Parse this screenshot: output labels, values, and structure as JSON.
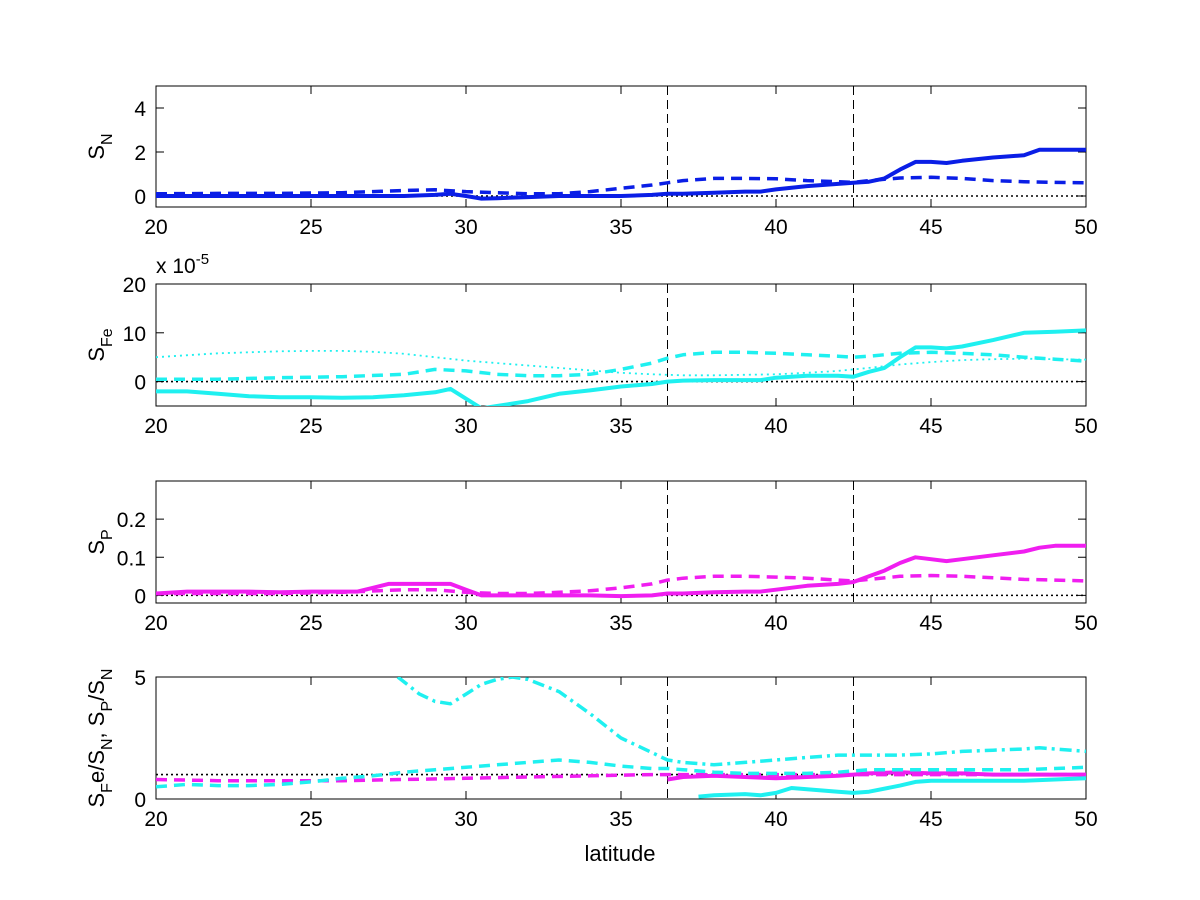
{
  "figure": {
    "xlabel": "latitude"
  },
  "chart_data": [
    {
      "type": "line",
      "ylabel": "S",
      "ylabel_sub": "N",
      "xlim": [
        20,
        50
      ],
      "ylim": [
        -0.5,
        5
      ],
      "xticks": [
        20,
        25,
        30,
        35,
        40,
        45,
        50
      ],
      "yticks": [
        0,
        2,
        4
      ],
      "vlines": [
        36.5,
        42.5
      ],
      "zero_line": 0,
      "series": [
        {
          "style": "solid",
          "color": "#0a1ee6",
          "x": [
            20,
            21,
            22,
            23,
            24,
            25,
            26,
            27,
            28,
            29,
            29.5,
            30,
            30.5,
            31,
            32,
            33,
            34,
            35,
            36,
            36.5,
            37,
            38,
            39,
            39.5,
            40,
            41,
            42,
            42.5,
            43,
            43.5,
            44,
            44.5,
            45,
            45.5,
            46,
            47,
            47.5,
            48,
            48.5,
            49,
            50
          ],
          "y": [
            0,
            0,
            0,
            0,
            0,
            0,
            0,
            0,
            0,
            0.05,
            0.1,
            0,
            -0.12,
            -0.1,
            -0.05,
            0,
            0,
            0,
            0.05,
            0.1,
            0.1,
            0.15,
            0.2,
            0.2,
            0.3,
            0.45,
            0.55,
            0.6,
            0.65,
            0.8,
            1.2,
            1.55,
            1.55,
            1.5,
            1.6,
            1.75,
            1.8,
            1.85,
            2.1,
            2.1,
            2.1
          ]
        },
        {
          "style": "dashed",
          "color": "#0a1ee6",
          "x": [
            20,
            22,
            24,
            26,
            27,
            28,
            29,
            30,
            31,
            32,
            33,
            34,
            35,
            36,
            36.5,
            37,
            38,
            39,
            40,
            41,
            42,
            42.5,
            43,
            44,
            45,
            46,
            47,
            48,
            49,
            50
          ],
          "y": [
            0.1,
            0.12,
            0.12,
            0.15,
            0.2,
            0.25,
            0.28,
            0.2,
            0.15,
            0.1,
            0.1,
            0.2,
            0.35,
            0.5,
            0.6,
            0.7,
            0.8,
            0.8,
            0.78,
            0.7,
            0.65,
            0.62,
            0.7,
            0.82,
            0.85,
            0.8,
            0.7,
            0.65,
            0.62,
            0.6
          ]
        }
      ]
    },
    {
      "type": "line",
      "ylabel": "S",
      "ylabel_sub": "Fe",
      "exponent_label": "x 10",
      "exponent_power": "-5",
      "xlim": [
        20,
        50
      ],
      "ylim": [
        -5,
        20
      ],
      "xticks": [
        20,
        25,
        30,
        35,
        40,
        45,
        50
      ],
      "yticks": [
        0,
        10,
        20
      ],
      "vlines": [
        36.5,
        42.5
      ],
      "zero_line": 0,
      "series": [
        {
          "style": "solid",
          "color": "#1ff0f0",
          "x": [
            20,
            21,
            22,
            23,
            24,
            25,
            26,
            27,
            28,
            29,
            29.5,
            30,
            30.5,
            31,
            32,
            33,
            34,
            35,
            36,
            36.5,
            37,
            38,
            39,
            39.5,
            40,
            41,
            42,
            42.5,
            43,
            43.5,
            44,
            44.5,
            45,
            45.5,
            46,
            47,
            48,
            49,
            50
          ],
          "y": [
            -2,
            -2,
            -2.5,
            -3,
            -3.2,
            -3.2,
            -3.3,
            -3.2,
            -2.8,
            -2.2,
            -1.5,
            -3.5,
            -5.5,
            -5,
            -4,
            -2.5,
            -1.8,
            -1,
            -0.5,
            0,
            0.2,
            0.3,
            0.3,
            0.3,
            0.8,
            1.2,
            1.2,
            1,
            2,
            2.8,
            5,
            7,
            7,
            6.8,
            7.2,
            8.5,
            10,
            10.2,
            10.5
          ]
        },
        {
          "style": "dashed",
          "color": "#1ff0f0",
          "x": [
            20,
            22,
            24,
            26,
            28,
            29,
            30,
            31,
            32,
            33,
            34,
            35,
            36,
            36.5,
            37,
            38,
            39,
            40,
            41,
            42,
            42.5,
            43,
            44,
            45,
            46,
            47,
            48,
            49,
            50
          ],
          "y": [
            0.5,
            0.5,
            0.8,
            1,
            1.5,
            2.5,
            2.2,
            1.5,
            1.2,
            1.2,
            1.5,
            2.5,
            3.8,
            4.8,
            5.5,
            6,
            6,
            5.8,
            5.5,
            5.2,
            5,
            5.2,
            5.8,
            6,
            5.8,
            5.5,
            5,
            4.6,
            4.2
          ]
        },
        {
          "style": "dotted",
          "color": "#1ff0f0",
          "x": [
            20,
            22,
            24,
            25,
            26,
            27,
            28,
            29,
            30,
            31,
            32,
            33,
            34,
            35,
            36,
            37,
            38,
            39,
            40,
            41,
            42,
            43,
            44,
            45,
            46,
            47,
            48,
            49,
            50
          ],
          "y": [
            5,
            5.8,
            6.2,
            6.3,
            6.3,
            6.1,
            5.7,
            5,
            4.3,
            3.8,
            3.3,
            2.8,
            2.3,
            1.8,
            1.5,
            1.3,
            1.3,
            1.4,
            1.5,
            1.8,
            2.2,
            2.8,
            3.5,
            4,
            4.4,
            4.6,
            4.7,
            4.6,
            4.5
          ]
        }
      ]
    },
    {
      "type": "line",
      "ylabel": "S",
      "ylabel_sub": "P",
      "xlim": [
        20,
        50
      ],
      "ylim": [
        -0.02,
        0.3
      ],
      "xticks": [
        20,
        25,
        30,
        35,
        40,
        45,
        50
      ],
      "yticks": [
        0,
        0.1,
        0.2
      ],
      "vlines": [
        36.5,
        42.5
      ],
      "zero_line": 0,
      "series": [
        {
          "style": "solid",
          "color": "#f01ef0",
          "x": [
            20,
            21,
            22,
            23,
            24,
            25,
            26,
            26.5,
            27,
            27.5,
            28,
            29,
            29.5,
            30,
            30.5,
            31,
            32,
            33,
            34,
            35,
            36,
            36.5,
            37,
            38,
            39,
            39.5,
            40,
            41,
            42,
            42.5,
            43,
            43.5,
            44,
            44.5,
            45,
            45.5,
            46,
            47,
            48,
            48.5,
            49,
            50
          ],
          "y": [
            0.005,
            0.01,
            0.01,
            0.01,
            0.008,
            0.01,
            0.01,
            0.01,
            0.02,
            0.03,
            0.03,
            0.03,
            0.03,
            0.015,
            0,
            0,
            0,
            0,
            0,
            -0.002,
            0,
            0.005,
            0.005,
            0.008,
            0.01,
            0.01,
            0.015,
            0.025,
            0.03,
            0.035,
            0.05,
            0.065,
            0.085,
            0.1,
            0.095,
            0.09,
            0.095,
            0.105,
            0.115,
            0.125,
            0.13,
            0.13
          ]
        },
        {
          "style": "dashed",
          "color": "#f01ef0",
          "x": [
            20,
            22,
            24,
            26,
            28,
            29,
            30,
            31,
            32,
            33,
            34,
            35,
            36,
            36.5,
            37,
            38,
            39,
            40,
            41,
            42,
            42.5,
            43,
            44,
            45,
            46,
            47,
            48,
            49,
            50
          ],
          "y": [
            0.005,
            0.005,
            0.005,
            0.008,
            0.015,
            0.015,
            0.008,
            0.005,
            0.005,
            0.008,
            0.012,
            0.02,
            0.03,
            0.04,
            0.045,
            0.05,
            0.05,
            0.048,
            0.045,
            0.04,
            0.038,
            0.042,
            0.05,
            0.052,
            0.05,
            0.046,
            0.042,
            0.04,
            0.038
          ]
        }
      ]
    },
    {
      "type": "line",
      "ylabel": "S",
      "ylabel_parts": [
        "S",
        "F",
        "e/S",
        "N",
        ", S",
        "P",
        "/S",
        "N"
      ],
      "xlim": [
        20,
        50
      ],
      "ylim": [
        0,
        5
      ],
      "xticks": [
        20,
        25,
        30,
        35,
        40,
        45,
        50
      ],
      "yticks": [
        0,
        5
      ],
      "vlines": [
        36.5,
        42.5
      ],
      "ref_line": 1,
      "series": [
        {
          "style": "solid",
          "color": "#f01ef0",
          "x": [
            36.5,
            37,
            38,
            39,
            40,
            41,
            42,
            42.5,
            43,
            44,
            45,
            46,
            47,
            48,
            49,
            50
          ],
          "y": [
            0.8,
            0.9,
            0.95,
            0.9,
            0.85,
            0.9,
            0.95,
            1,
            1.05,
            1.1,
            1.05,
            1.05,
            1,
            1,
            1,
            1
          ]
        },
        {
          "style": "dashed",
          "color": "#f01ef0",
          "x": [
            20,
            22,
            24,
            26,
            28,
            30,
            32,
            34,
            36,
            36.5,
            38,
            40,
            42,
            44,
            46,
            48,
            50
          ],
          "y": [
            0.8,
            0.75,
            0.75,
            0.75,
            0.8,
            0.85,
            0.9,
            0.95,
            1,
            1,
            1,
            1,
            1,
            1,
            1,
            1,
            1
          ]
        },
        {
          "style": "solid",
          "color": "#1ff0f0",
          "x": [
            37.5,
            38,
            39,
            39.5,
            40,
            40.5,
            41,
            42,
            42.5,
            43,
            44,
            44.5,
            45,
            46,
            47,
            48,
            49,
            50
          ],
          "y": [
            0.1,
            0.15,
            0.2,
            0.15,
            0.25,
            0.45,
            0.4,
            0.3,
            0.25,
            0.3,
            0.55,
            0.7,
            0.75,
            0.75,
            0.75,
            0.75,
            0.8,
            0.85
          ]
        },
        {
          "style": "dashed",
          "color": "#1ff0f0",
          "x": [
            20,
            21,
            22,
            23,
            24,
            25,
            26,
            27,
            28,
            29,
            30,
            31,
            32,
            33,
            34,
            35,
            36,
            36.5,
            37,
            38,
            39,
            40,
            41,
            42,
            42.5,
            43,
            44,
            45,
            46,
            47,
            48,
            49,
            50
          ],
          "y": [
            0.5,
            0.6,
            0.55,
            0.55,
            0.6,
            0.7,
            0.85,
            0.95,
            1.1,
            1.2,
            1.3,
            1.4,
            1.5,
            1.6,
            1.5,
            1.35,
            1.25,
            1.25,
            1.2,
            1.1,
            1.05,
            1.05,
            1.05,
            1.1,
            1.15,
            1.2,
            1.2,
            1.2,
            1.2,
            1.2,
            1.2,
            1.25,
            1.3
          ]
        },
        {
          "style": "dashdot",
          "color": "#1ff0f0",
          "x": [
            27.8,
            28.5,
            29,
            29.5,
            30,
            30.5,
            31,
            31.5,
            32,
            33,
            34,
            35,
            36,
            36.5,
            37,
            38,
            39,
            40,
            41,
            42,
            42.5,
            43,
            44,
            45,
            46,
            47,
            48,
            48.5,
            49,
            50
          ],
          "y": [
            5,
            4.3,
            4,
            3.9,
            4.3,
            4.7,
            4.9,
            5,
            4.9,
            4.4,
            3.5,
            2.5,
            1.9,
            1.6,
            1.5,
            1.4,
            1.5,
            1.6,
            1.7,
            1.8,
            1.8,
            1.8,
            1.8,
            1.85,
            1.95,
            2,
            2.05,
            2.1,
            2.05,
            1.95
          ]
        }
      ]
    }
  ]
}
